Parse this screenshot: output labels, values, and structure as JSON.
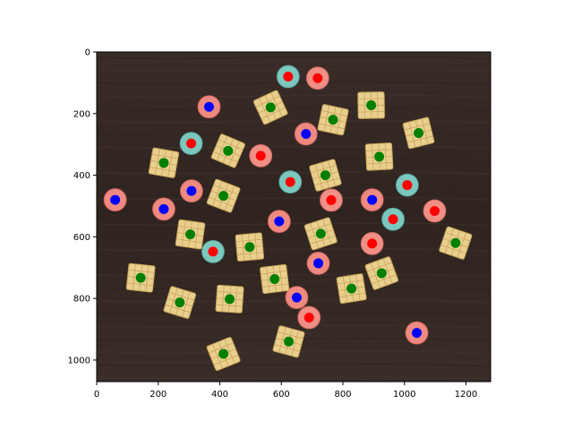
{
  "chart_data": {
    "type": "scatter",
    "title": "",
    "xlabel": "",
    "ylabel": "",
    "xlim": [
      0,
      1280
    ],
    "ylim": [
      1070,
      0
    ],
    "y_inverted": true,
    "xticks": [
      0,
      200,
      400,
      600,
      800,
      1000,
      1200
    ],
    "yticks": [
      0,
      200,
      400,
      600,
      800,
      1000
    ],
    "grid": false,
    "legend": "none",
    "background": "photo of cereal pieces on dark wooden table",
    "series": [
      {
        "marker_color": "#0000ff",
        "object": "pink ring cereal",
        "points": [
          [
            365,
            178
          ],
          [
            680,
            266
          ],
          [
            60,
            480
          ],
          [
            218,
            510
          ],
          [
            308,
            451
          ],
          [
            593,
            550
          ],
          [
            650,
            797
          ],
          [
            895,
            480
          ],
          [
            1040,
            912
          ],
          [
            720,
            686
          ]
        ]
      },
      {
        "marker_color": "#ff0000",
        "object": "ring cereal",
        "points": [
          [
            622,
            80
          ],
          [
            718,
            85
          ],
          [
            307,
            297
          ],
          [
            533,
            337
          ],
          [
            629,
            422
          ],
          [
            762,
            481
          ],
          [
            378,
            648
          ],
          [
            690,
            862
          ],
          [
            1009,
            432
          ],
          [
            1098,
            516
          ],
          [
            963,
            543
          ],
          [
            895,
            622
          ]
        ]
      },
      {
        "marker_color": "#008000",
        "object": "square cereal",
        "points": [
          [
            565,
            180
          ],
          [
            768,
            220
          ],
          [
            892,
            173
          ],
          [
            1046,
            263
          ],
          [
            427,
            321
          ],
          [
            218,
            360
          ],
          [
            918,
            340
          ],
          [
            743,
            400
          ],
          [
            412,
            467
          ],
          [
            304,
            592
          ],
          [
            497,
            633
          ],
          [
            728,
            590
          ],
          [
            1166,
            620
          ],
          [
            143,
            733
          ],
          [
            578,
            737
          ],
          [
            926,
            718
          ],
          [
            270,
            813
          ],
          [
            432,
            802
          ],
          [
            828,
            768
          ],
          [
            412,
            980
          ],
          [
            624,
            940
          ]
        ]
      }
    ]
  }
}
